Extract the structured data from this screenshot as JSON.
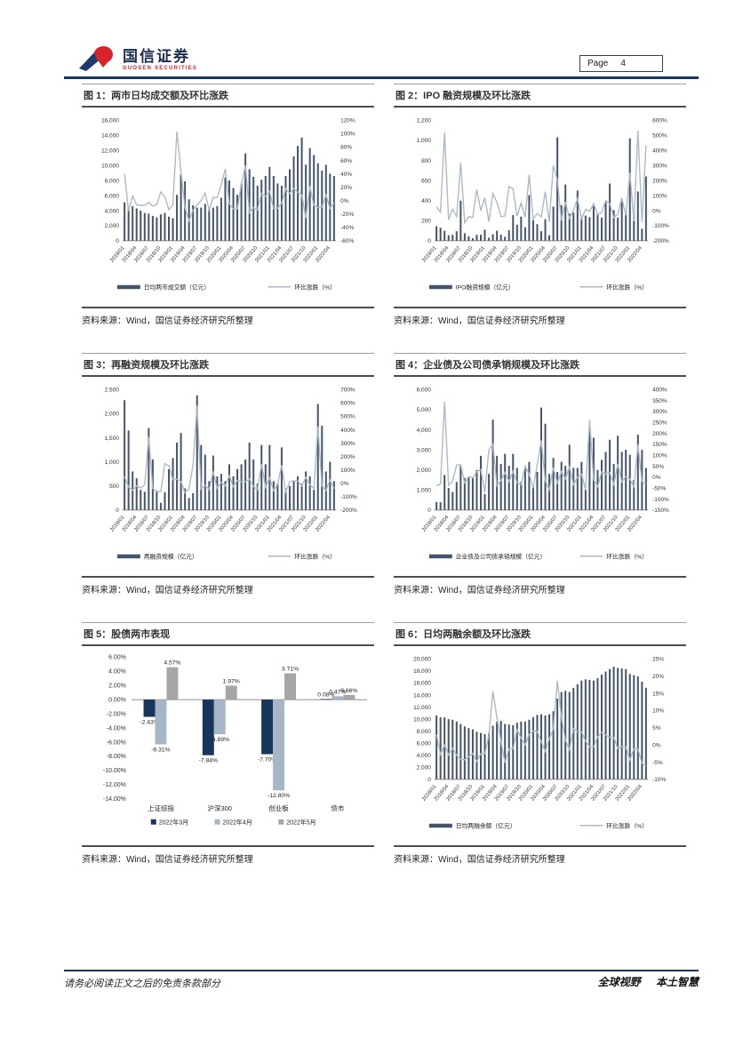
{
  "header": {
    "logo_cn": "国信证券",
    "logo_en": "GUOSEN SECURITIES",
    "page_label": "Page",
    "page_number": "4"
  },
  "footer": {
    "disclaimer": "请务必阅读正文之后的免责条款部分",
    "slogan_left": "全球视野",
    "slogan_right": "本土智慧"
  },
  "source_note": "资料来源：Wind，国信证券经济研究所整理",
  "colors": {
    "bar": "#44546A",
    "line": "#AEBAC5",
    "march": "#17365D",
    "april": "#A7B6C4",
    "may": "#A6A6A6",
    "axis": "#595959",
    "rule": "#17375E"
  },
  "months": [
    "2018/01",
    "2018/02",
    "2018/03",
    "2018/04",
    "2018/05",
    "2018/06",
    "2018/07",
    "2018/08",
    "2018/09",
    "2018/10",
    "2018/11",
    "2018/12",
    "2019/01",
    "2019/02",
    "2019/03",
    "2019/04",
    "2019/05",
    "2019/06",
    "2019/07",
    "2019/08",
    "2019/09",
    "2019/10",
    "2019/11",
    "2019/12",
    "2020/01",
    "2020/02",
    "2020/03",
    "2020/04",
    "2020/05",
    "2020/06",
    "2020/07",
    "2020/08",
    "2020/09",
    "2020/10",
    "2020/11",
    "2020/12",
    "2021/01",
    "2021/02",
    "2021/03",
    "2021/04",
    "2021/05",
    "2021/06",
    "2021/07",
    "2021/08",
    "2021/09",
    "2021/10",
    "2021/11",
    "2021/12",
    "2022/01",
    "2022/02",
    "2022/03",
    "2022/04",
    "2022/05"
  ],
  "chart_data": [
    {
      "id": "fig1",
      "type": "bar+line",
      "title": "图 1：两市日均成交额及环比涨跌",
      "legend_bar": "日均两市成交额（亿元）",
      "legend_line": "环比涨跌（%）",
      "left_axis": {
        "min": 0,
        "max": 16000,
        "step": 2000
      },
      "right_axis": {
        "min": -60,
        "max": 120,
        "step": 20
      },
      "bars": [
        5100,
        4300,
        4600,
        4300,
        4000,
        3700,
        3600,
        3300,
        3100,
        3500,
        3700,
        3200,
        3000,
        6100,
        8800,
        7900,
        5500,
        4700,
        4400,
        4400,
        4900,
        4200,
        4400,
        4600,
        5700,
        8400,
        8000,
        7000,
        6100,
        7600,
        11600,
        9500,
        8500,
        7300,
        8100,
        8600,
        9800,
        8600,
        7600,
        7300,
        8600,
        9500,
        11200,
        12600,
        13700,
        10100,
        12300,
        11400,
        10300,
        9300,
        10100,
        8900,
        8600
      ],
      "line": [
        40,
        -15.7,
        7,
        -6.5,
        -7,
        -7.5,
        -2.7,
        -8.3,
        -6.1,
        12.9,
        5.7,
        -13.5,
        -6.3,
        103.3,
        44.3,
        -10.2,
        -30.4,
        -14.5,
        -6.4,
        0,
        11.4,
        -14.3,
        4.8,
        4.5,
        23.9,
        47.4,
        -4.8,
        -12.5,
        -12.9,
        24.6,
        52.6,
        -18.1,
        -10.5,
        -14.1,
        11,
        6.2,
        14,
        -12.2,
        -11.6,
        -3.9,
        17.8,
        10.5,
        17.9,
        12.5,
        8.7,
        -26.3,
        21.8,
        -7.3,
        -9.6,
        -9.7,
        8.6,
        -11.9,
        -3.4
      ]
    },
    {
      "id": "fig2",
      "type": "bar+line",
      "title": "图 2：IPO 融资规模及环比涨跌",
      "legend_bar": "IPO融资规模（亿元）",
      "legend_line": "环比涨跌（%）",
      "left_axis": {
        "min": 0,
        "max": 1200,
        "step": 200
      },
      "right_axis": {
        "min": -200,
        "max": 600,
        "step": 100
      },
      "bars": [
        145,
        130,
        100,
        55,
        60,
        95,
        400,
        75,
        45,
        25,
        60,
        60,
        110,
        30,
        65,
        100,
        60,
        40,
        105,
        255,
        160,
        240,
        135,
        455,
        205,
        165,
        95,
        215,
        55,
        340,
        1030,
        355,
        560,
        270,
        280,
        500,
        230,
        250,
        235,
        345,
        260,
        230,
        385,
        570,
        305,
        230,
        420,
        290,
        1020,
        300,
        490,
        120,
        640
      ],
      "line": [
        25,
        -10,
        520,
        -60,
        10,
        -40,
        320,
        -80,
        -40,
        -45,
        140,
        0,
        85,
        -73,
        115,
        55,
        -40,
        -35,
        160,
        145,
        -37,
        50,
        -44,
        237,
        -55,
        -20,
        -42,
        126,
        -74,
        300,
        203,
        -66,
        58,
        -52,
        4,
        79,
        -54,
        9,
        -6,
        47,
        -25,
        -12,
        67,
        48,
        -46,
        -25,
        83,
        -31,
        252,
        -71,
        530,
        -76,
        433
      ]
    },
    {
      "id": "fig3",
      "type": "bar+line",
      "title": "图 3：再融资规模及环比涨跌",
      "legend_bar": "再融资规模（亿元）",
      "legend_line": "环比涨跌（%）",
      "left_axis": {
        "min": 0,
        "max": 2500,
        "step": 500
      },
      "right_axis": {
        "min": -200,
        "max": 700,
        "step": 100
      },
      "bars": [
        2280,
        1650,
        800,
        660,
        420,
        380,
        1700,
        1050,
        400,
        150,
        370,
        850,
        1080,
        1400,
        1600,
        450,
        250,
        350,
        2380,
        1350,
        1150,
        600,
        1130,
        700,
        750,
        600,
        950,
        700,
        850,
        950,
        1050,
        1400,
        1050,
        550,
        1350,
        950,
        1350,
        600,
        550,
        1300,
        450,
        500,
        600,
        700,
        550,
        800,
        700,
        420,
        2200,
        1750,
        800,
        1000,
        600
      ],
      "line": [
        50,
        -28,
        -52,
        -18,
        -36,
        -10,
        347,
        -38,
        -62,
        -63,
        147,
        130,
        27,
        30,
        14,
        -72,
        -44,
        140,
        580,
        -43,
        -15,
        -48,
        88,
        -38,
        7,
        -20,
        58,
        -26,
        21,
        12,
        11,
        33,
        -25,
        -48,
        145,
        -30,
        42,
        -56,
        -8,
        136,
        -65,
        11,
        20,
        17,
        -21,
        45,
        -13,
        -40,
        424,
        -20,
        -54,
        25,
        -40
      ]
    },
    {
      "id": "fig4",
      "type": "bar+line",
      "title": "图 4：企业债及公司债承销规模及环比涨跌",
      "legend_bar": "企业债及公司债承销规模（亿元）",
      "legend_line": "环比涨跌（%）",
      "left_axis": {
        "min": 0,
        "max": 6000,
        "step": 1000
      },
      "right_axis": {
        "min": -150,
        "max": 400,
        "step": 50
      },
      "bars": [
        400,
        390,
        1750,
        1100,
        900,
        1400,
        2200,
        1600,
        1650,
        1600,
        2000,
        2700,
        800,
        1800,
        4500,
        2700,
        2300,
        2800,
        2200,
        2800,
        2100,
        1400,
        2100,
        2400,
        1200,
        1900,
        5100,
        4300,
        1800,
        2600,
        1900,
        2400,
        2200,
        3250,
        2100,
        2100,
        2400,
        1000,
        4000,
        3600,
        2000,
        2500,
        2900,
        3500,
        2300,
        3700,
        2900,
        3000,
        2750,
        1500,
        3750,
        3000,
        2100
      ],
      "line": [
        -40,
        -30,
        345,
        -37,
        -18,
        56,
        57,
        -27,
        3,
        -3,
        25,
        35,
        -70,
        125,
        150,
        -40,
        -15,
        22,
        -21,
        27,
        -25,
        -33,
        50,
        14,
        -50,
        58,
        168,
        -16,
        -58,
        44,
        -27,
        26,
        -8,
        48,
        -35,
        0,
        14,
        -58,
        260,
        -10,
        -44,
        25,
        16,
        21,
        -34,
        61,
        -22,
        3,
        -8,
        -45,
        150,
        -20,
        -30
      ]
    },
    {
      "id": "fig5",
      "type": "grouped-bar",
      "title": "图 5：股债两市表现",
      "categories": [
        "上证综指",
        "沪深300",
        "创业板",
        "债市"
      ],
      "y_axis": {
        "min": -14,
        "max": 6,
        "step": 2
      },
      "series": [
        {
          "name": "2022年3月",
          "color": "#17365D",
          "values": [
            -2.43,
            -7.84,
            -7.7,
            0.08
          ],
          "labels": [
            "-2.43%",
            "-7.84%",
            "-7.70%",
            "0.08%"
          ]
        },
        {
          "name": "2022年4月",
          "color": "#A7B6C4",
          "values": [
            -6.31,
            -4.89,
            -12.8,
            0.47
          ],
          "labels": [
            "-6.31%",
            "-4.89%",
            "-12.80%",
            "0.47%"
          ]
        },
        {
          "name": "2022年5月",
          "color": "#A6A6A6",
          "values": [
            4.57,
            1.97,
            3.71,
            0.66
          ],
          "labels": [
            "4.57%",
            "1.97%",
            "3.71%",
            "0.66%"
          ]
        }
      ]
    },
    {
      "id": "fig6",
      "type": "bar+line",
      "title": "图 6：日均两融余额及环比涨跌",
      "legend_bar": "日均两融余额（亿元）",
      "legend_line": "环比涨跌（%）",
      "left_axis": {
        "min": 0,
        "max": 20000,
        "step": 2000
      },
      "right_axis": {
        "min": -10,
        "max": 25,
        "step": 5
      },
      "bars": [
        10600,
        10300,
        10300,
        10000,
        9900,
        9600,
        9200,
        8800,
        8500,
        8300,
        7900,
        7700,
        7500,
        7700,
        8900,
        9600,
        9700,
        9200,
        9100,
        9000,
        9400,
        9600,
        9600,
        9900,
        10300,
        10700,
        10800,
        10600,
        10800,
        11300,
        13400,
        14500,
        14700,
        14500,
        15200,
        15800,
        16400,
        16600,
        16500,
        16400,
        16800,
        17400,
        17900,
        18300,
        18700,
        18500,
        18400,
        18300,
        17500,
        17300,
        17100,
        16200,
        15200
      ],
      "line": [
        3,
        -2.8,
        0,
        -2.9,
        -1,
        -3,
        -4.2,
        -4.3,
        -3.4,
        -2.4,
        -4.8,
        -2.5,
        -2.6,
        2.7,
        15.6,
        7.9,
        1,
        -5.2,
        -1.1,
        -1.1,
        4.4,
        2.1,
        0,
        3.1,
        4,
        3.9,
        0.9,
        -1.9,
        1.9,
        4.6,
        18.6,
        8.2,
        1.4,
        -1.4,
        4.8,
        3.9,
        3.8,
        1.2,
        -0.6,
        -0.6,
        2.4,
        3.6,
        2.9,
        2.2,
        2.2,
        -1.1,
        -0.5,
        -0.5,
        -4.4,
        -1.1,
        -1.2,
        -5.3,
        -6.2
      ]
    }
  ]
}
